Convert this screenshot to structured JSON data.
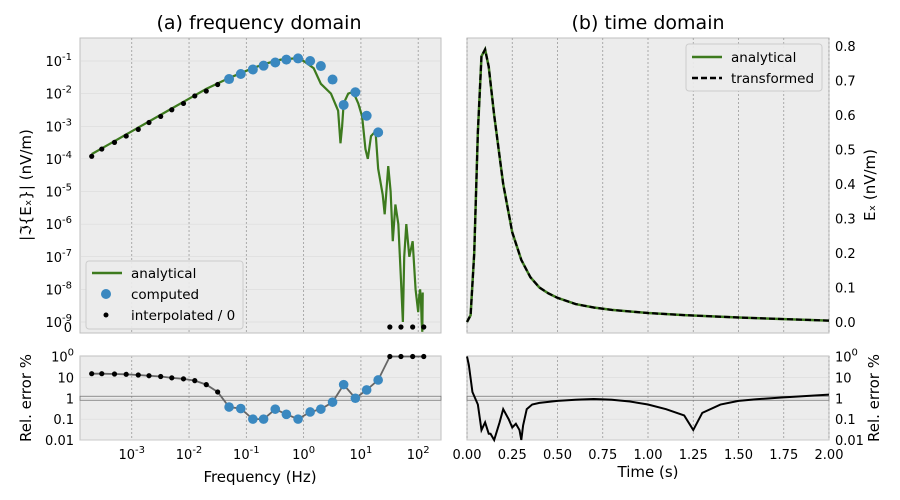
{
  "colors": {
    "analytical": "#3d7a1e",
    "computed": "#3a88c0",
    "interpolated": "#000000",
    "transformed": "#000000",
    "error_freq": "#666666",
    "axes_bg": "#ececec"
  },
  "chart_data": [
    {
      "id": "freq",
      "type": "line",
      "title": "(a) frequency domain",
      "ylabel": "|ℑ{Eₓ}| (nV/m)",
      "xscale": "log",
      "yscale": "symlog",
      "xlim": [
        0.000125,
        250
      ],
      "ylim": [
        0,
        0.5
      ],
      "xticks": [
        "10-3",
        "10-2",
        "10-1",
        "100",
        "101",
        "102"
      ],
      "yticks": [
        "0",
        "10-9",
        "10-8",
        "10-7",
        "10-6",
        "10-5",
        "10-4",
        "10-3",
        "10-2",
        "10-1"
      ],
      "legend_position": "lower-left",
      "series": [
        {
          "name": "analytical",
          "x": [
            0.0002,
            0.0004,
            0.001,
            0.002,
            0.005,
            0.01,
            0.02,
            0.05,
            0.1,
            0.2,
            0.4,
            0.7,
            1.0,
            1.5,
            2.0,
            3.0,
            4.0,
            4.4,
            4.7,
            5.0,
            6.0,
            7.0,
            8.0,
            9.0,
            10.5,
            12,
            13.2,
            15,
            18,
            20,
            24,
            26,
            30,
            33,
            36,
            40,
            45,
            50,
            54,
            57,
            62,
            70,
            80,
            90,
            100,
            104,
            108,
            112,
            115,
            118,
            120
          ],
          "y": [
            0.00014,
            0.00028,
            0.0007,
            0.0014,
            0.0035,
            0.007,
            0.014,
            0.03,
            0.05,
            0.08,
            0.11,
            0.12,
            0.1,
            0.06,
            0.02,
            0.01,
            0.003,
            0.0003,
            0.001,
            0.005,
            0.01,
            0.011,
            0.008,
            0.005,
            0.002,
            0.0002,
            0.0001,
            0.0005,
            0.0007,
            5e-05,
            8e-06,
            2e-06,
            6e-05,
            1e-05,
            3e-07,
            4e-06,
            1e-06,
            2e-08,
            1e-09,
            1e-07,
            1e-06,
            1e-07,
            3e-07,
            1e-08,
            2e-09,
            6e-09,
            1e-08,
            4e-09,
            1e-09,
            5e-10,
            8e-09
          ]
        },
        {
          "name": "computed",
          "x": [
            0.05,
            0.08,
            0.13,
            0.2,
            0.32,
            0.5,
            0.8,
            1.3,
            2.0,
            3.2,
            5.0,
            8.0,
            12.6,
            20.0
          ],
          "y": [
            0.028,
            0.04,
            0.055,
            0.072,
            0.09,
            0.11,
            0.12,
            0.1,
            0.07,
            0.027,
            0.0045,
            0.011,
            0.0021,
            0.00065
          ]
        },
        {
          "name": "interpolated / 0",
          "x": [
            0.0002,
            0.0003,
            0.0005,
            0.0008,
            0.0013,
            0.002,
            0.0032,
            0.005,
            0.008,
            0.0126,
            0.02,
            0.0316,
            32,
            50,
            80,
            125
          ],
          "y": [
            0.00012,
            0.0002,
            0.00032,
            0.0005,
            0.0008,
            0.0013,
            0.002,
            0.0032,
            0.005,
            0.0085,
            0.012,
            0.019,
            0,
            0,
            0,
            0
          ]
        }
      ]
    },
    {
      "id": "time",
      "type": "line",
      "title": "(b) time domain",
      "ylabel": "Eₓ (nV/m)",
      "xlabel": "",
      "xlim": [
        0,
        2
      ],
      "ylim": [
        -0.03,
        0.83
      ],
      "yticks": [
        "0.0",
        "0.1",
        "0.2",
        "0.3",
        "0.4",
        "0.5",
        "0.6",
        "0.7",
        "0.8"
      ],
      "legend_position": "upper-right",
      "series": [
        {
          "name": "analytical",
          "x": [
            0.0,
            0.02,
            0.04,
            0.06,
            0.08,
            0.1,
            0.12,
            0.15,
            0.2,
            0.25,
            0.3,
            0.35,
            0.4,
            0.45,
            0.5,
            0.6,
            0.7,
            0.8,
            1.0,
            1.2,
            1.5,
            2.0
          ],
          "y": [
            0.0,
            0.02,
            0.2,
            0.55,
            0.77,
            0.79,
            0.74,
            0.6,
            0.4,
            0.26,
            0.18,
            0.13,
            0.1,
            0.083,
            0.07,
            0.052,
            0.042,
            0.035,
            0.026,
            0.02,
            0.013,
            0.004
          ]
        },
        {
          "name": "transformed",
          "same_as": "analytical"
        }
      ]
    },
    {
      "id": "freq-error",
      "type": "line",
      "ylabel": "Rel. error %",
      "xlabel": "Frequency (Hz)",
      "xscale": "log",
      "yscale": "log",
      "ylim": [
        0.01,
        100
      ],
      "yticks": [
        "0.01",
        "0.1",
        "1",
        "10",
        "100"
      ],
      "x": [
        0.0002,
        0.0003,
        0.0005,
        0.0008,
        0.0013,
        0.002,
        0.0032,
        0.005,
        0.008,
        0.0126,
        0.02,
        0.0316,
        0.05,
        0.08,
        0.13,
        0.2,
        0.32,
        0.5,
        0.8,
        1.3,
        2.0,
        3.2,
        5.0,
        8.0,
        12.6,
        20.0,
        32,
        50,
        80,
        125
      ],
      "y": [
        15,
        15,
        14.5,
        14,
        13,
        12,
        11,
        9.5,
        8.5,
        7,
        4.5,
        2,
        0.38,
        0.32,
        0.1,
        0.1,
        0.3,
        0.17,
        0.1,
        0.22,
        0.3,
        0.65,
        4.5,
        1,
        2.5,
        7.5,
        100,
        100,
        100,
        100
      ]
    },
    {
      "id": "time-error",
      "type": "line",
      "ylabel": "Rel. error %",
      "xlabel": "Time (s)",
      "xlim": [
        0,
        2
      ],
      "ylim": [
        0.01,
        100
      ],
      "xticks": [
        "0.00",
        "0.25",
        "0.50",
        "0.75",
        "1.00",
        "1.25",
        "1.50",
        "1.75",
        "2.00"
      ],
      "yticks": [
        "0.01",
        "0.1",
        "1",
        "10",
        "100"
      ],
      "x": [
        0.0,
        0.01,
        0.03,
        0.06,
        0.08,
        0.1,
        0.12,
        0.13,
        0.15,
        0.18,
        0.2,
        0.23,
        0.25,
        0.27,
        0.29,
        0.3,
        0.31,
        0.33,
        0.36,
        0.4,
        0.5,
        0.6,
        0.7,
        0.8,
        0.9,
        1.0,
        1.1,
        1.2,
        1.25,
        1.3,
        1.4,
        1.5,
        1.6,
        1.75,
        2.0
      ],
      "y": [
        100,
        40,
        2,
        0.5,
        0.03,
        0.07,
        0.02,
        0.02,
        0.01,
        0.07,
        0.3,
        0.1,
        0.04,
        0.06,
        0.03,
        0.01,
        0.05,
        0.3,
        0.5,
        0.6,
        0.75,
        0.85,
        0.92,
        0.85,
        0.7,
        0.5,
        0.3,
        0.15,
        0.03,
        0.2,
        0.5,
        0.75,
        0.9,
        1.1,
        1.5
      ]
    }
  ]
}
